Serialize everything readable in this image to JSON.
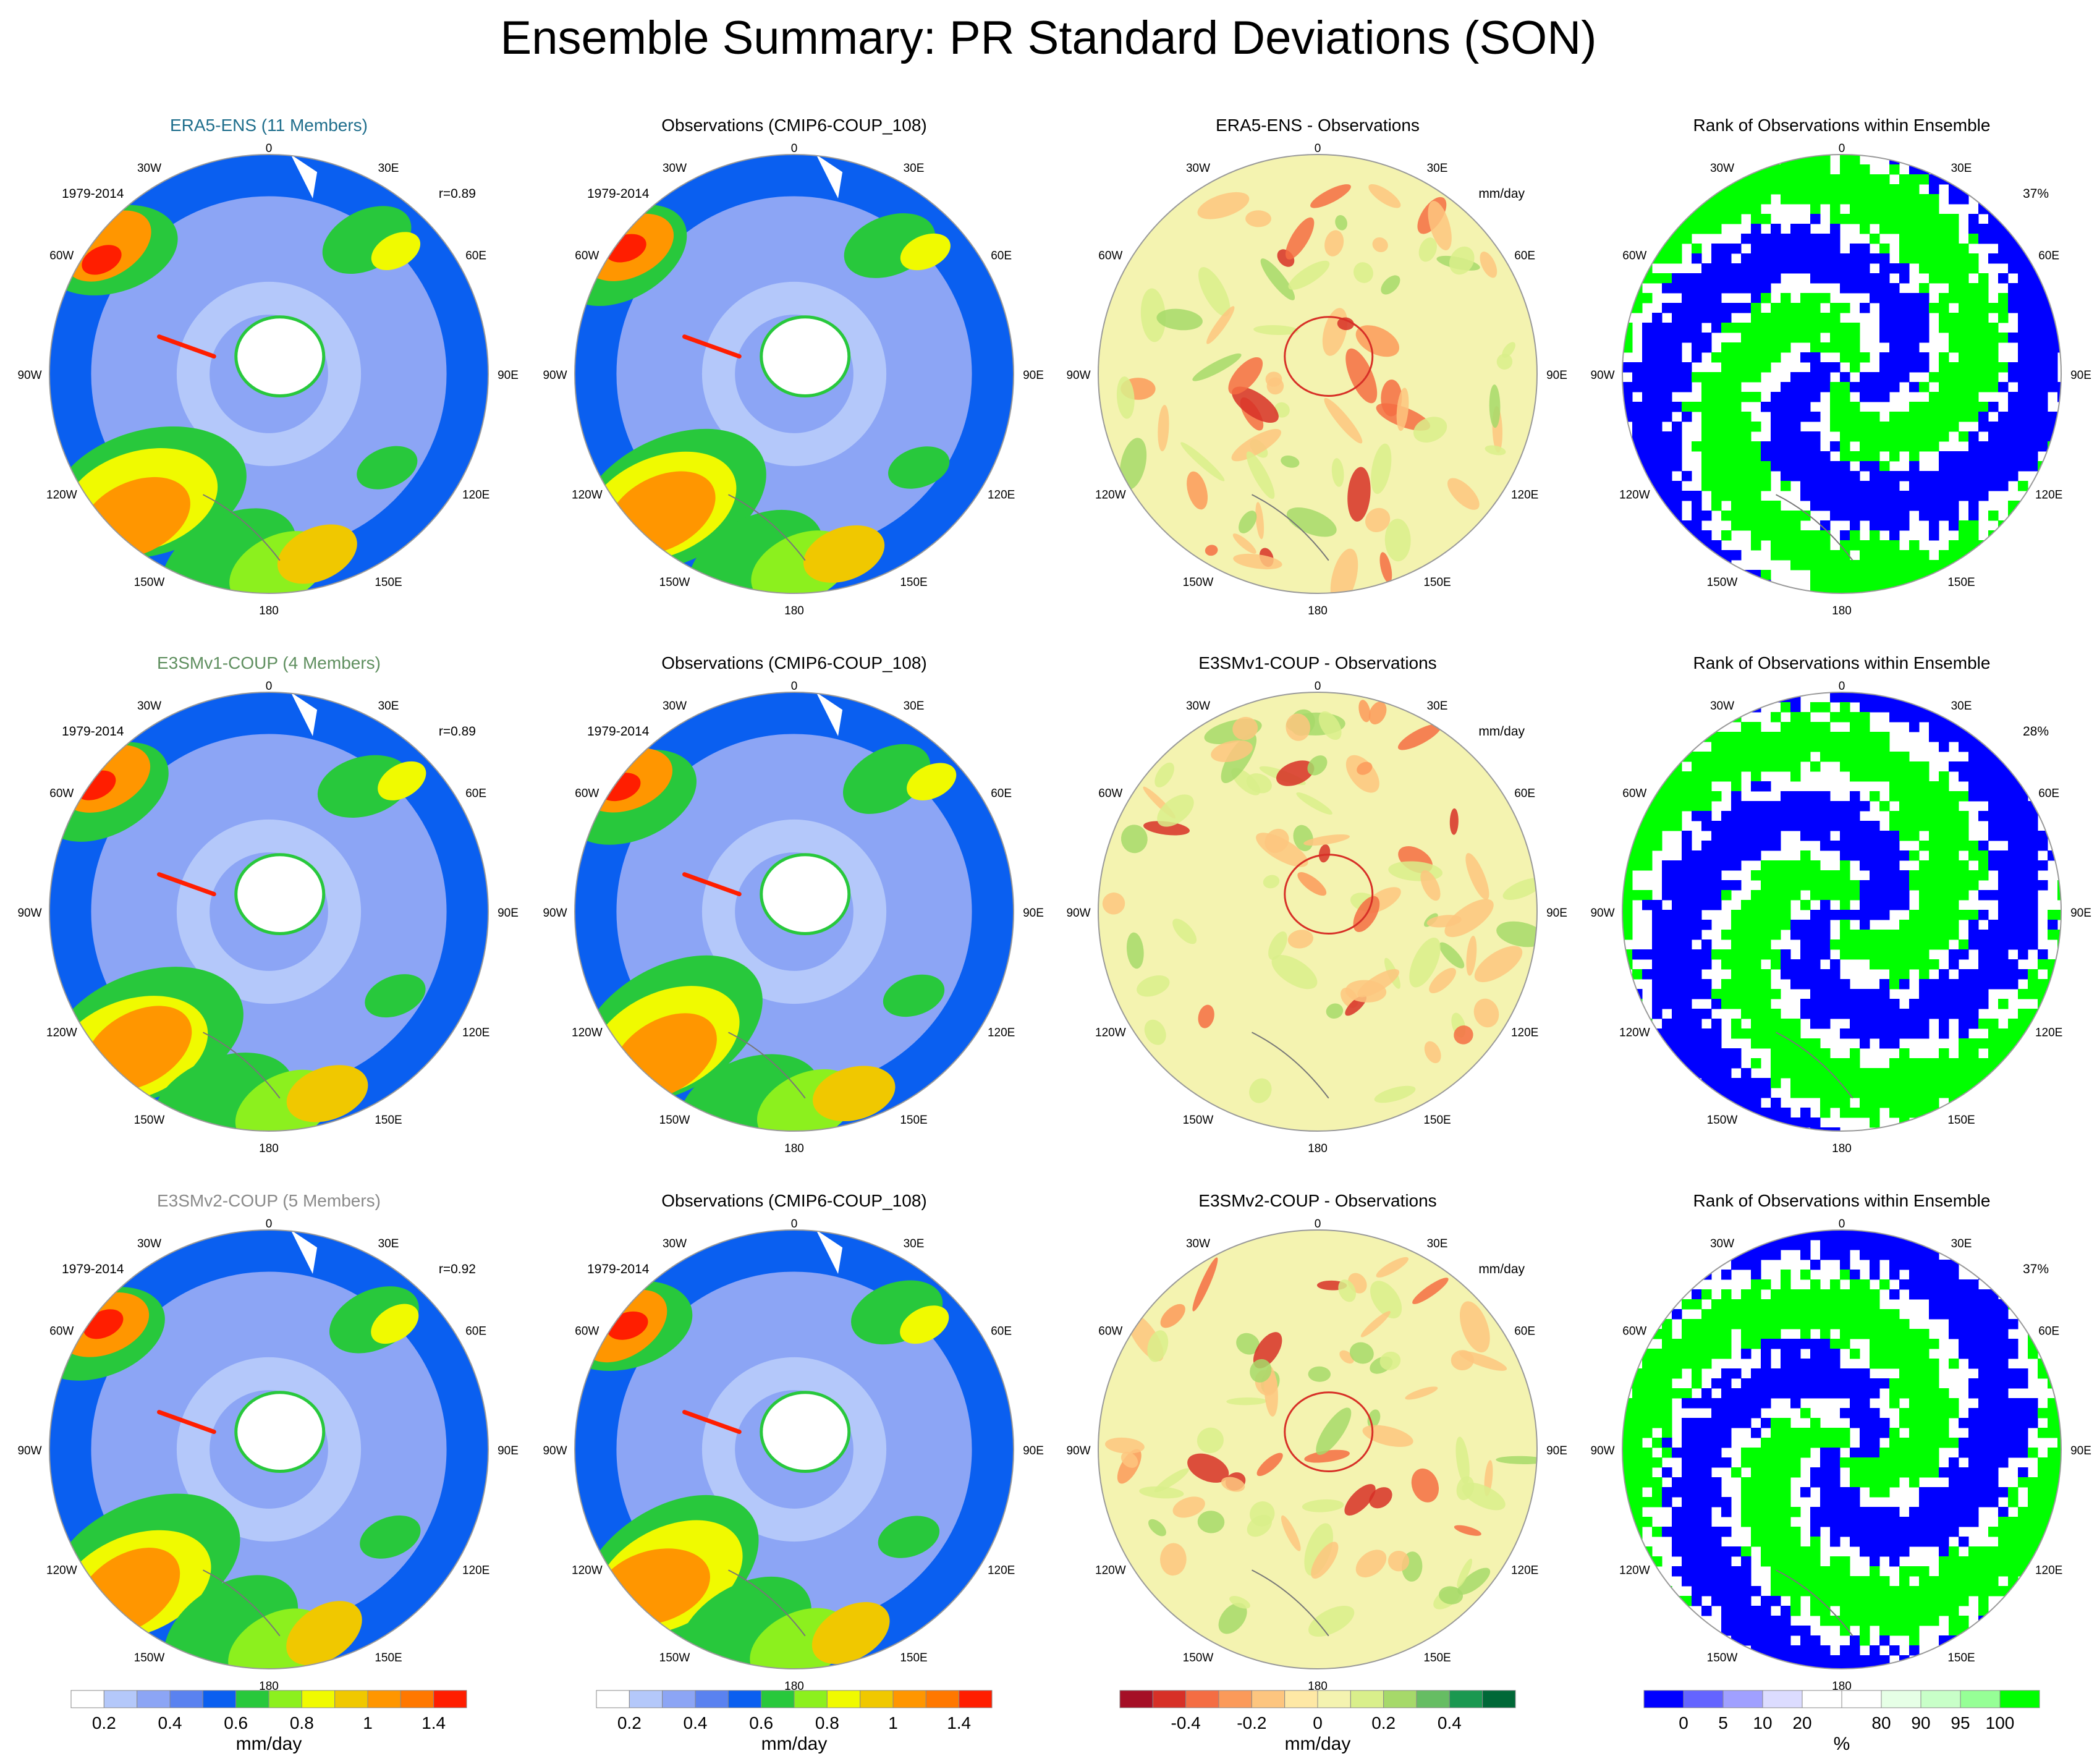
{
  "title": "Ensemble Summary: PR Standard Deviations (SON)",
  "colors": {
    "era5_title": "#1f6e8c",
    "e3smv1_title": "#5f8f5f",
    "e3smv2_title": "#8a8a8a",
    "land_outline": "#777777"
  },
  "chart_data": [
    {
      "type": "heatmap",
      "row": 0,
      "col": 0,
      "title": "ERA5-ENS (11 Members)",
      "period": "1979-2014",
      "stat": "r=0.89",
      "units": "mm/day",
      "field": "pr_stddev",
      "projection": "south-polar-stereographic"
    },
    {
      "type": "heatmap",
      "row": 0,
      "col": 1,
      "title": "Observations (CMIP6-COUP_108)",
      "period": "1979-2014",
      "stat": "",
      "units": "mm/day",
      "field": "pr_stddev",
      "projection": "south-polar-stereographic"
    },
    {
      "type": "heatmap",
      "row": 0,
      "col": 2,
      "title": "ERA5-ENS - Observations",
      "period": "",
      "stat": "mm/day",
      "units": "mm/day",
      "field": "difference",
      "projection": "south-polar-stereographic"
    },
    {
      "type": "heatmap",
      "row": 0,
      "col": 3,
      "title": "Rank of Observations within Ensemble",
      "period": "",
      "stat": "37%",
      "units": "%",
      "field": "rank",
      "projection": "south-polar-stereographic"
    },
    {
      "type": "heatmap",
      "row": 1,
      "col": 0,
      "title": "E3SMv1-COUP (4 Members)",
      "period": "1979-2014",
      "stat": "r=0.89",
      "units": "mm/day",
      "field": "pr_stddev",
      "projection": "south-polar-stereographic"
    },
    {
      "type": "heatmap",
      "row": 1,
      "col": 1,
      "title": "Observations (CMIP6-COUP_108)",
      "period": "1979-2014",
      "stat": "",
      "units": "mm/day",
      "field": "pr_stddev",
      "projection": "south-polar-stereographic"
    },
    {
      "type": "heatmap",
      "row": 1,
      "col": 2,
      "title": "E3SMv1-COUP - Observations",
      "period": "",
      "stat": "mm/day",
      "units": "mm/day",
      "field": "difference",
      "projection": "south-polar-stereographic"
    },
    {
      "type": "heatmap",
      "row": 1,
      "col": 3,
      "title": "Rank of Observations within Ensemble",
      "period": "",
      "stat": "28%",
      "units": "%",
      "field": "rank",
      "projection": "south-polar-stereographic"
    },
    {
      "type": "heatmap",
      "row": 2,
      "col": 0,
      "title": "E3SMv2-COUP (5 Members)",
      "period": "1979-2014",
      "stat": "r=0.92",
      "units": "mm/day",
      "field": "pr_stddev",
      "projection": "south-polar-stereographic"
    },
    {
      "type": "heatmap",
      "row": 2,
      "col": 1,
      "title": "Observations (CMIP6-COUP_108)",
      "period": "1979-2014",
      "stat": "",
      "units": "mm/day",
      "field": "pr_stddev",
      "projection": "south-polar-stereographic"
    },
    {
      "type": "heatmap",
      "row": 2,
      "col": 2,
      "title": "E3SMv2-COUP - Observations",
      "period": "",
      "stat": "mm/day",
      "units": "mm/day",
      "field": "difference",
      "projection": "south-polar-stereographic"
    },
    {
      "type": "heatmap",
      "row": 2,
      "col": 3,
      "title": "Rank of Observations within Ensemble",
      "period": "",
      "stat": "37%",
      "units": "%",
      "field": "rank",
      "projection": "south-polar-stereographic"
    }
  ],
  "longitude_labels": [
    "0",
    "30E",
    "60E",
    "90E",
    "120E",
    "150E",
    "180",
    "150W",
    "120W",
    "90W",
    "60W",
    "30W"
  ],
  "colorbars": [
    {
      "field": "pr_stddev",
      "label": "mm/day",
      "colors": [
        "#ffffff",
        "#b4c8fa",
        "#8ca5f5",
        "#5a82f0",
        "#0a5ff0",
        "#28c83c",
        "#8cf01e",
        "#f0fa00",
        "#f0c800",
        "#ff9600",
        "#ff7800",
        "#ff1e00"
      ],
      "ticks": [
        "0.2",
        "0.4",
        "0.6",
        "0.8",
        "1",
        "1.4"
      ],
      "tick_boundaries": [
        1,
        3,
        5,
        7,
        9,
        11
      ]
    },
    {
      "field": "pr_stddev",
      "label": "mm/day",
      "colors": [
        "#ffffff",
        "#b4c8fa",
        "#8ca5f5",
        "#5a82f0",
        "#0a5ff0",
        "#28c83c",
        "#8cf01e",
        "#f0fa00",
        "#f0c800",
        "#ff9600",
        "#ff7800",
        "#ff1e00"
      ],
      "ticks": [
        "0.2",
        "0.4",
        "0.6",
        "0.8",
        "1",
        "1.4"
      ],
      "tick_boundaries": [
        1,
        3,
        5,
        7,
        9,
        11
      ]
    },
    {
      "field": "difference",
      "label": "mm/day",
      "colors": [
        "#a50f26",
        "#d73027",
        "#f46d43",
        "#fb9a5a",
        "#fdc57f",
        "#fee8a5",
        "#f4f3b0",
        "#d9ef8b",
        "#a6d96a",
        "#66bd63",
        "#1a9850",
        "#006837"
      ],
      "ticks": [
        "-0.4",
        "-0.2",
        "0",
        "0.2",
        "0.4"
      ],
      "tick_boundaries": [
        2,
        4,
        6,
        8,
        10
      ]
    },
    {
      "field": "rank",
      "label": "%",
      "colors": [
        "#0000ff",
        "#6464ff",
        "#a0a0ff",
        "#dcdcff",
        "#ffffff",
        "#ffffff",
        "#e6ffe6",
        "#c8ffc8",
        "#96ff96",
        "#00ff00"
      ],
      "ticks": [
        "0",
        "5",
        "10",
        "20",
        "80",
        "90",
        "95",
        "100"
      ],
      "tick_boundaries": [
        1,
        2,
        3,
        4,
        6,
        7,
        8,
        9
      ]
    }
  ]
}
